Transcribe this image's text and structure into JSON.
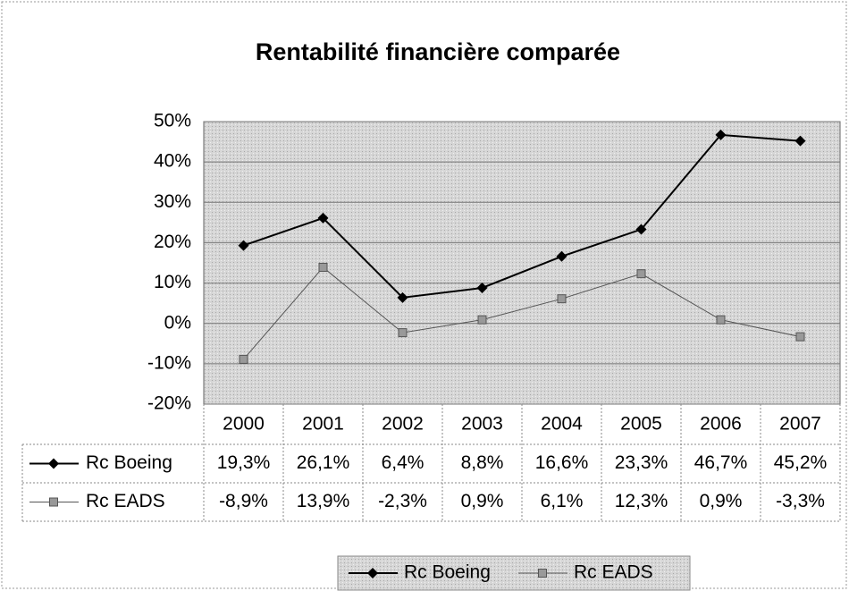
{
  "chart_data": {
    "type": "line",
    "title": "Rentabilité financière comparée",
    "categories": [
      "2000",
      "2001",
      "2002",
      "2003",
      "2004",
      "2005",
      "2006",
      "2007"
    ],
    "series": [
      {
        "name": "Rc Boeing",
        "color": "#000000",
        "marker": "diamond",
        "values": [
          19.3,
          26.1,
          6.4,
          8.8,
          16.6,
          23.3,
          46.7,
          45.2
        ],
        "value_labels": [
          "19,3%",
          "26,1%",
          "6,4%",
          "8,8%",
          "16,6%",
          "23,3%",
          "46,7%",
          "45,2%"
        ]
      },
      {
        "name": "Rc EADS",
        "color": "#555555",
        "marker": "square",
        "values": [
          -8.9,
          13.9,
          -2.3,
          0.9,
          6.1,
          12.3,
          0.9,
          -3.3
        ],
        "value_labels": [
          "-8,9%",
          "13,9%",
          "-2,3%",
          "0,9%",
          "6,1%",
          "12,3%",
          "0,9%",
          "-3,3%"
        ]
      }
    ],
    "ylim": [
      -20,
      50
    ],
    "yticks": [
      {
        "value": -20,
        "label": "-20%"
      },
      {
        "value": -10,
        "label": "-10%"
      },
      {
        "value": 0,
        "label": "0%"
      },
      {
        "value": 10,
        "label": "10%"
      },
      {
        "value": 20,
        "label": "20%"
      },
      {
        "value": 30,
        "label": "30%"
      },
      {
        "value": 40,
        "label": "40%"
      },
      {
        "value": 50,
        "label": "50%"
      }
    ],
    "grid": true,
    "legend": "bottom"
  }
}
